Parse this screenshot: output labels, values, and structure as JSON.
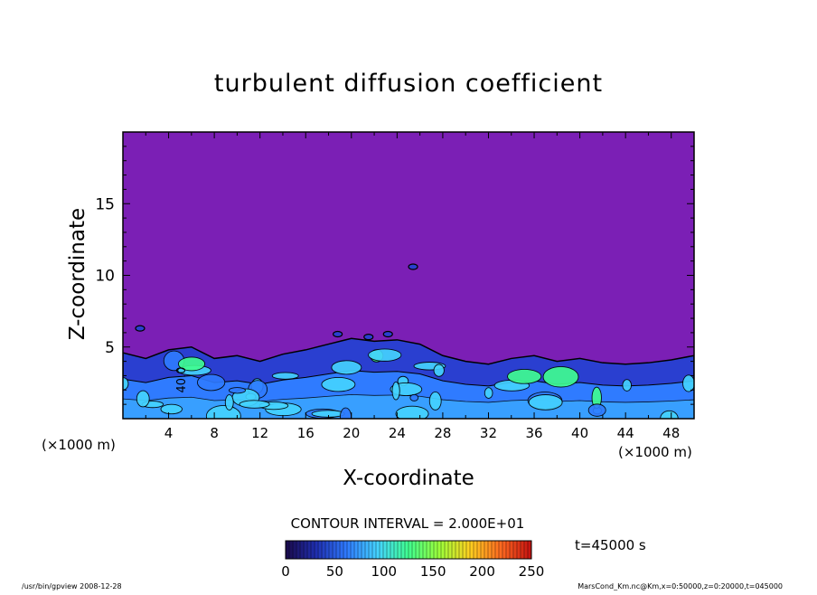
{
  "chart_data": {
    "type": "heatmap",
    "title": "turbulent diffusion coefficient",
    "xlabel": "X-coordinate",
    "ylabel": "Z-coordinate",
    "x_unit": "(×1000 m)",
    "y_unit": "(×1000 m)",
    "xlim": [
      0,
      50
    ],
    "ylim": [
      0,
      20
    ],
    "x_ticks": [
      4,
      8,
      12,
      16,
      20,
      24,
      28,
      32,
      36,
      40,
      44,
      48
    ],
    "y_ticks": [
      5,
      10,
      15
    ],
    "contour_interval_text": "CONTOUR INTERVAL = 2.000E+01",
    "contour_label": "40.0",
    "colorbar": {
      "min": 0,
      "max": 250,
      "ticks": [
        0,
        50,
        100,
        150,
        200,
        250
      ],
      "colors": [
        "#1a0a4a",
        "#1f2fb0",
        "#2f7bff",
        "#45d4ff",
        "#40ff90",
        "#9cff3a",
        "#ffd020",
        "#ff6a20",
        "#c41010"
      ]
    },
    "background_color": "#7b1fb5",
    "layer_profile": {
      "x": [
        0,
        2,
        4,
        6,
        8,
        10,
        12,
        14,
        16,
        18,
        20,
        22,
        24,
        26,
        28,
        30,
        32,
        34,
        36,
        38,
        40,
        42,
        44,
        46,
        48,
        50
      ],
      "top_z": [
        4.6,
        4.2,
        4.8,
        5.0,
        4.2,
        4.4,
        4.0,
        4.5,
        4.8,
        5.2,
        5.6,
        5.4,
        5.5,
        5.2,
        4.4,
        4.0,
        3.8,
        4.2,
        4.4,
        4.0,
        4.2,
        3.9,
        3.8,
        3.9,
        4.1,
        4.4
      ]
    },
    "time_label": "t=45000 s"
  },
  "footer": {
    "left": "/usr/bin/gpview   2008-12-28",
    "right": "MarsCond_Km.nc@Km,x=0:50000,z=0:20000,t=045000"
  }
}
